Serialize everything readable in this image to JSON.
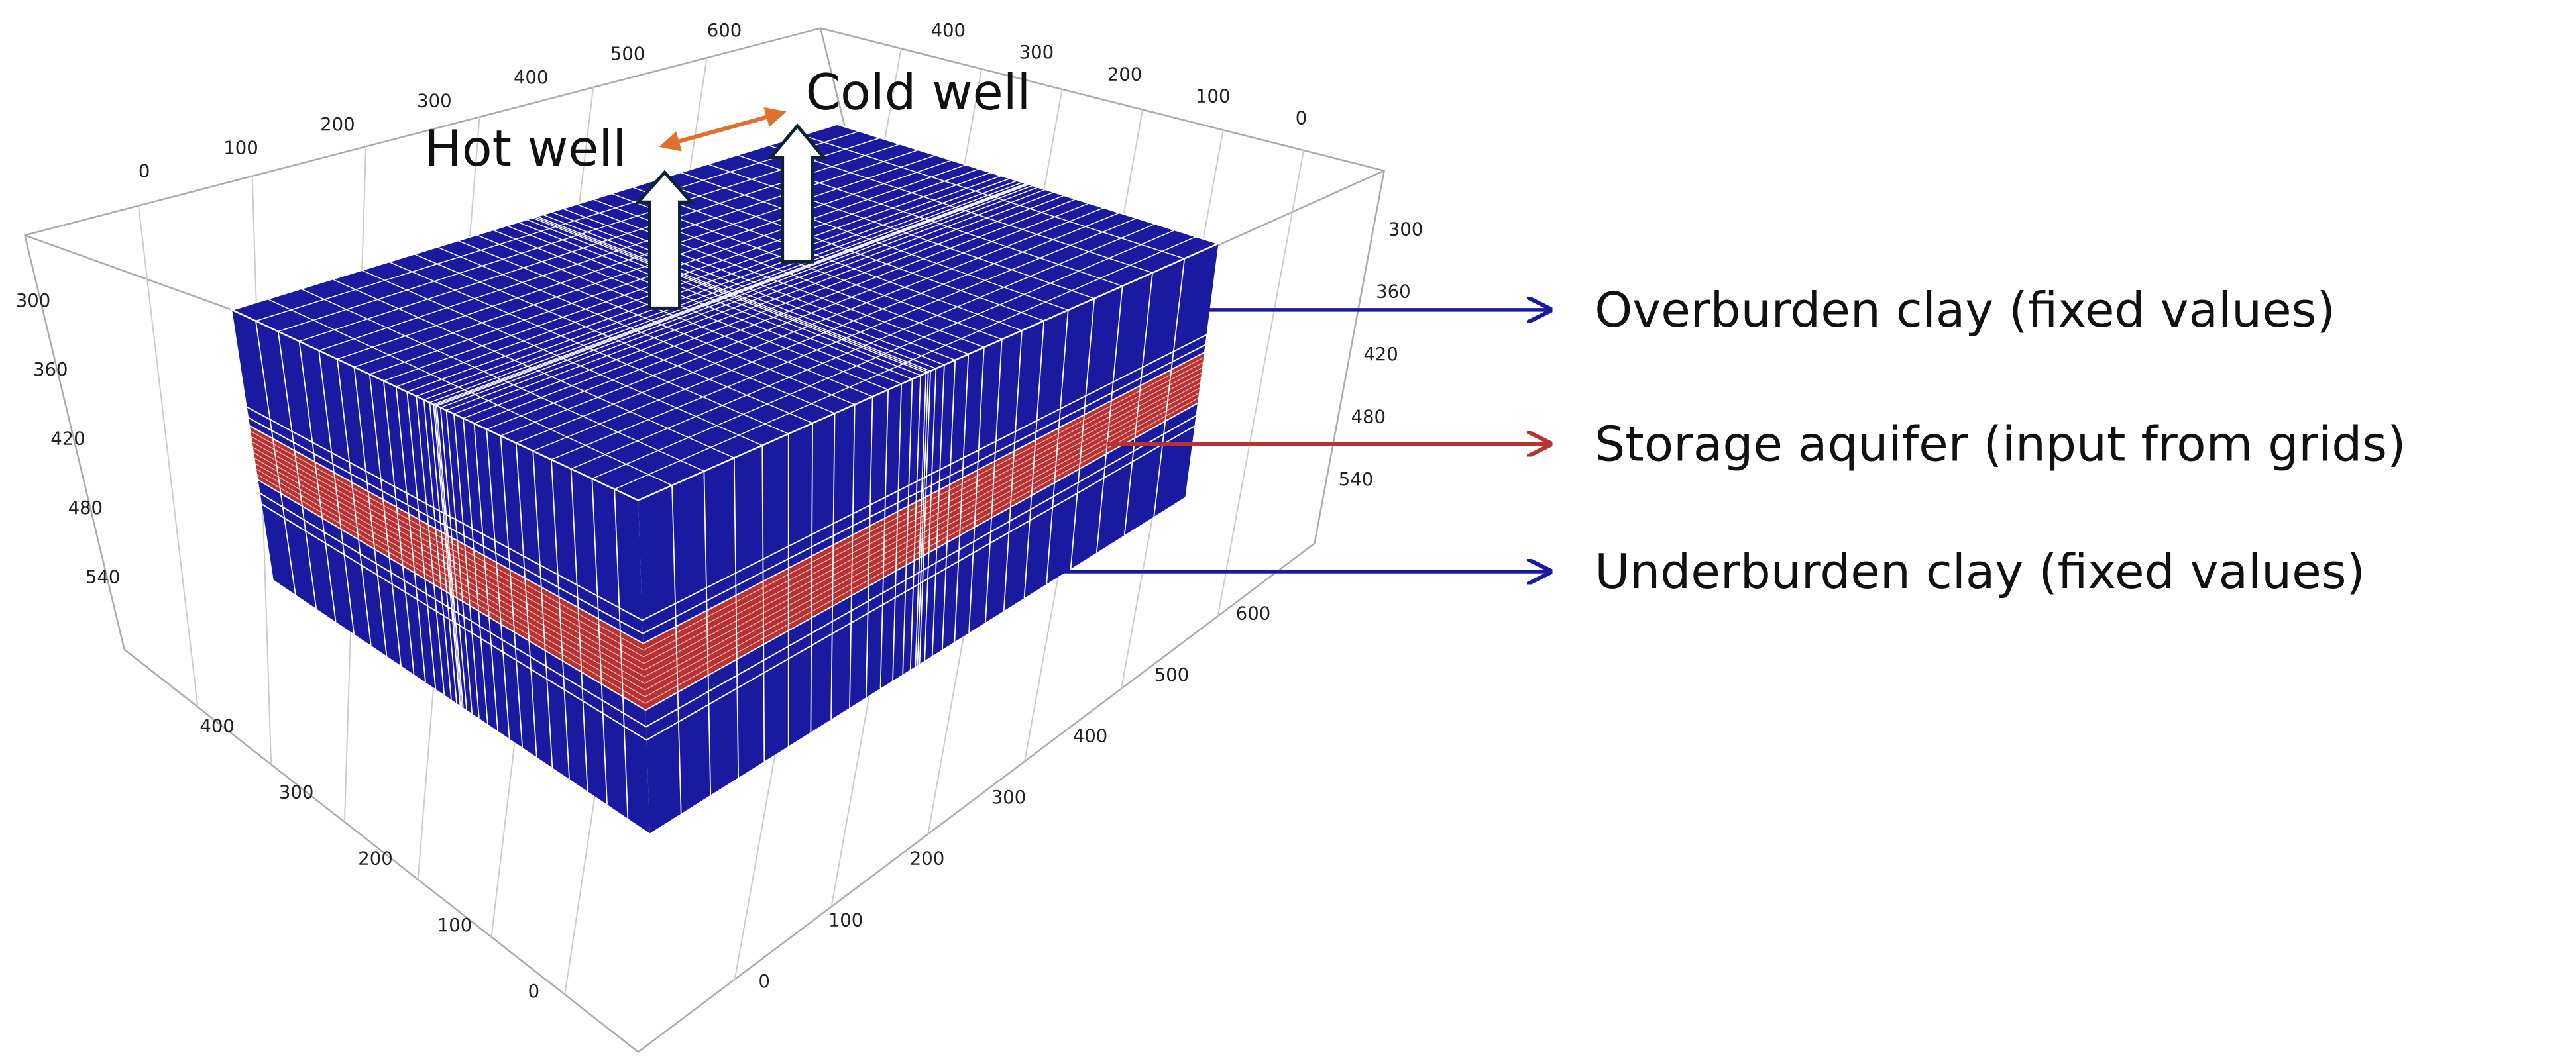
{
  "annotations": {
    "hot_well": "Hot well",
    "cold_well": "Cold well"
  },
  "layers": [
    {
      "label": "Overburden clay (fixed values)",
      "color": "#1a1aa0"
    },
    {
      "label": "Storage aquifer (input from grids)",
      "color": "#b83232"
    },
    {
      "label": "Underburden clay (fixed values)",
      "color": "#1a1aa0"
    }
  ],
  "axes": {
    "top_left": [
      0,
      100,
      200,
      300,
      400,
      500,
      600
    ],
    "top_right": [
      400,
      300,
      200,
      100,
      0
    ],
    "left_depth": [
      300,
      360,
      420,
      480,
      540
    ],
    "right_depth": [
      300,
      360,
      420,
      480,
      540
    ],
    "bottom_right": [
      600,
      500,
      400,
      300,
      200,
      100,
      0
    ],
    "bottom_left": [
      400,
      300,
      200,
      100,
      0
    ]
  }
}
